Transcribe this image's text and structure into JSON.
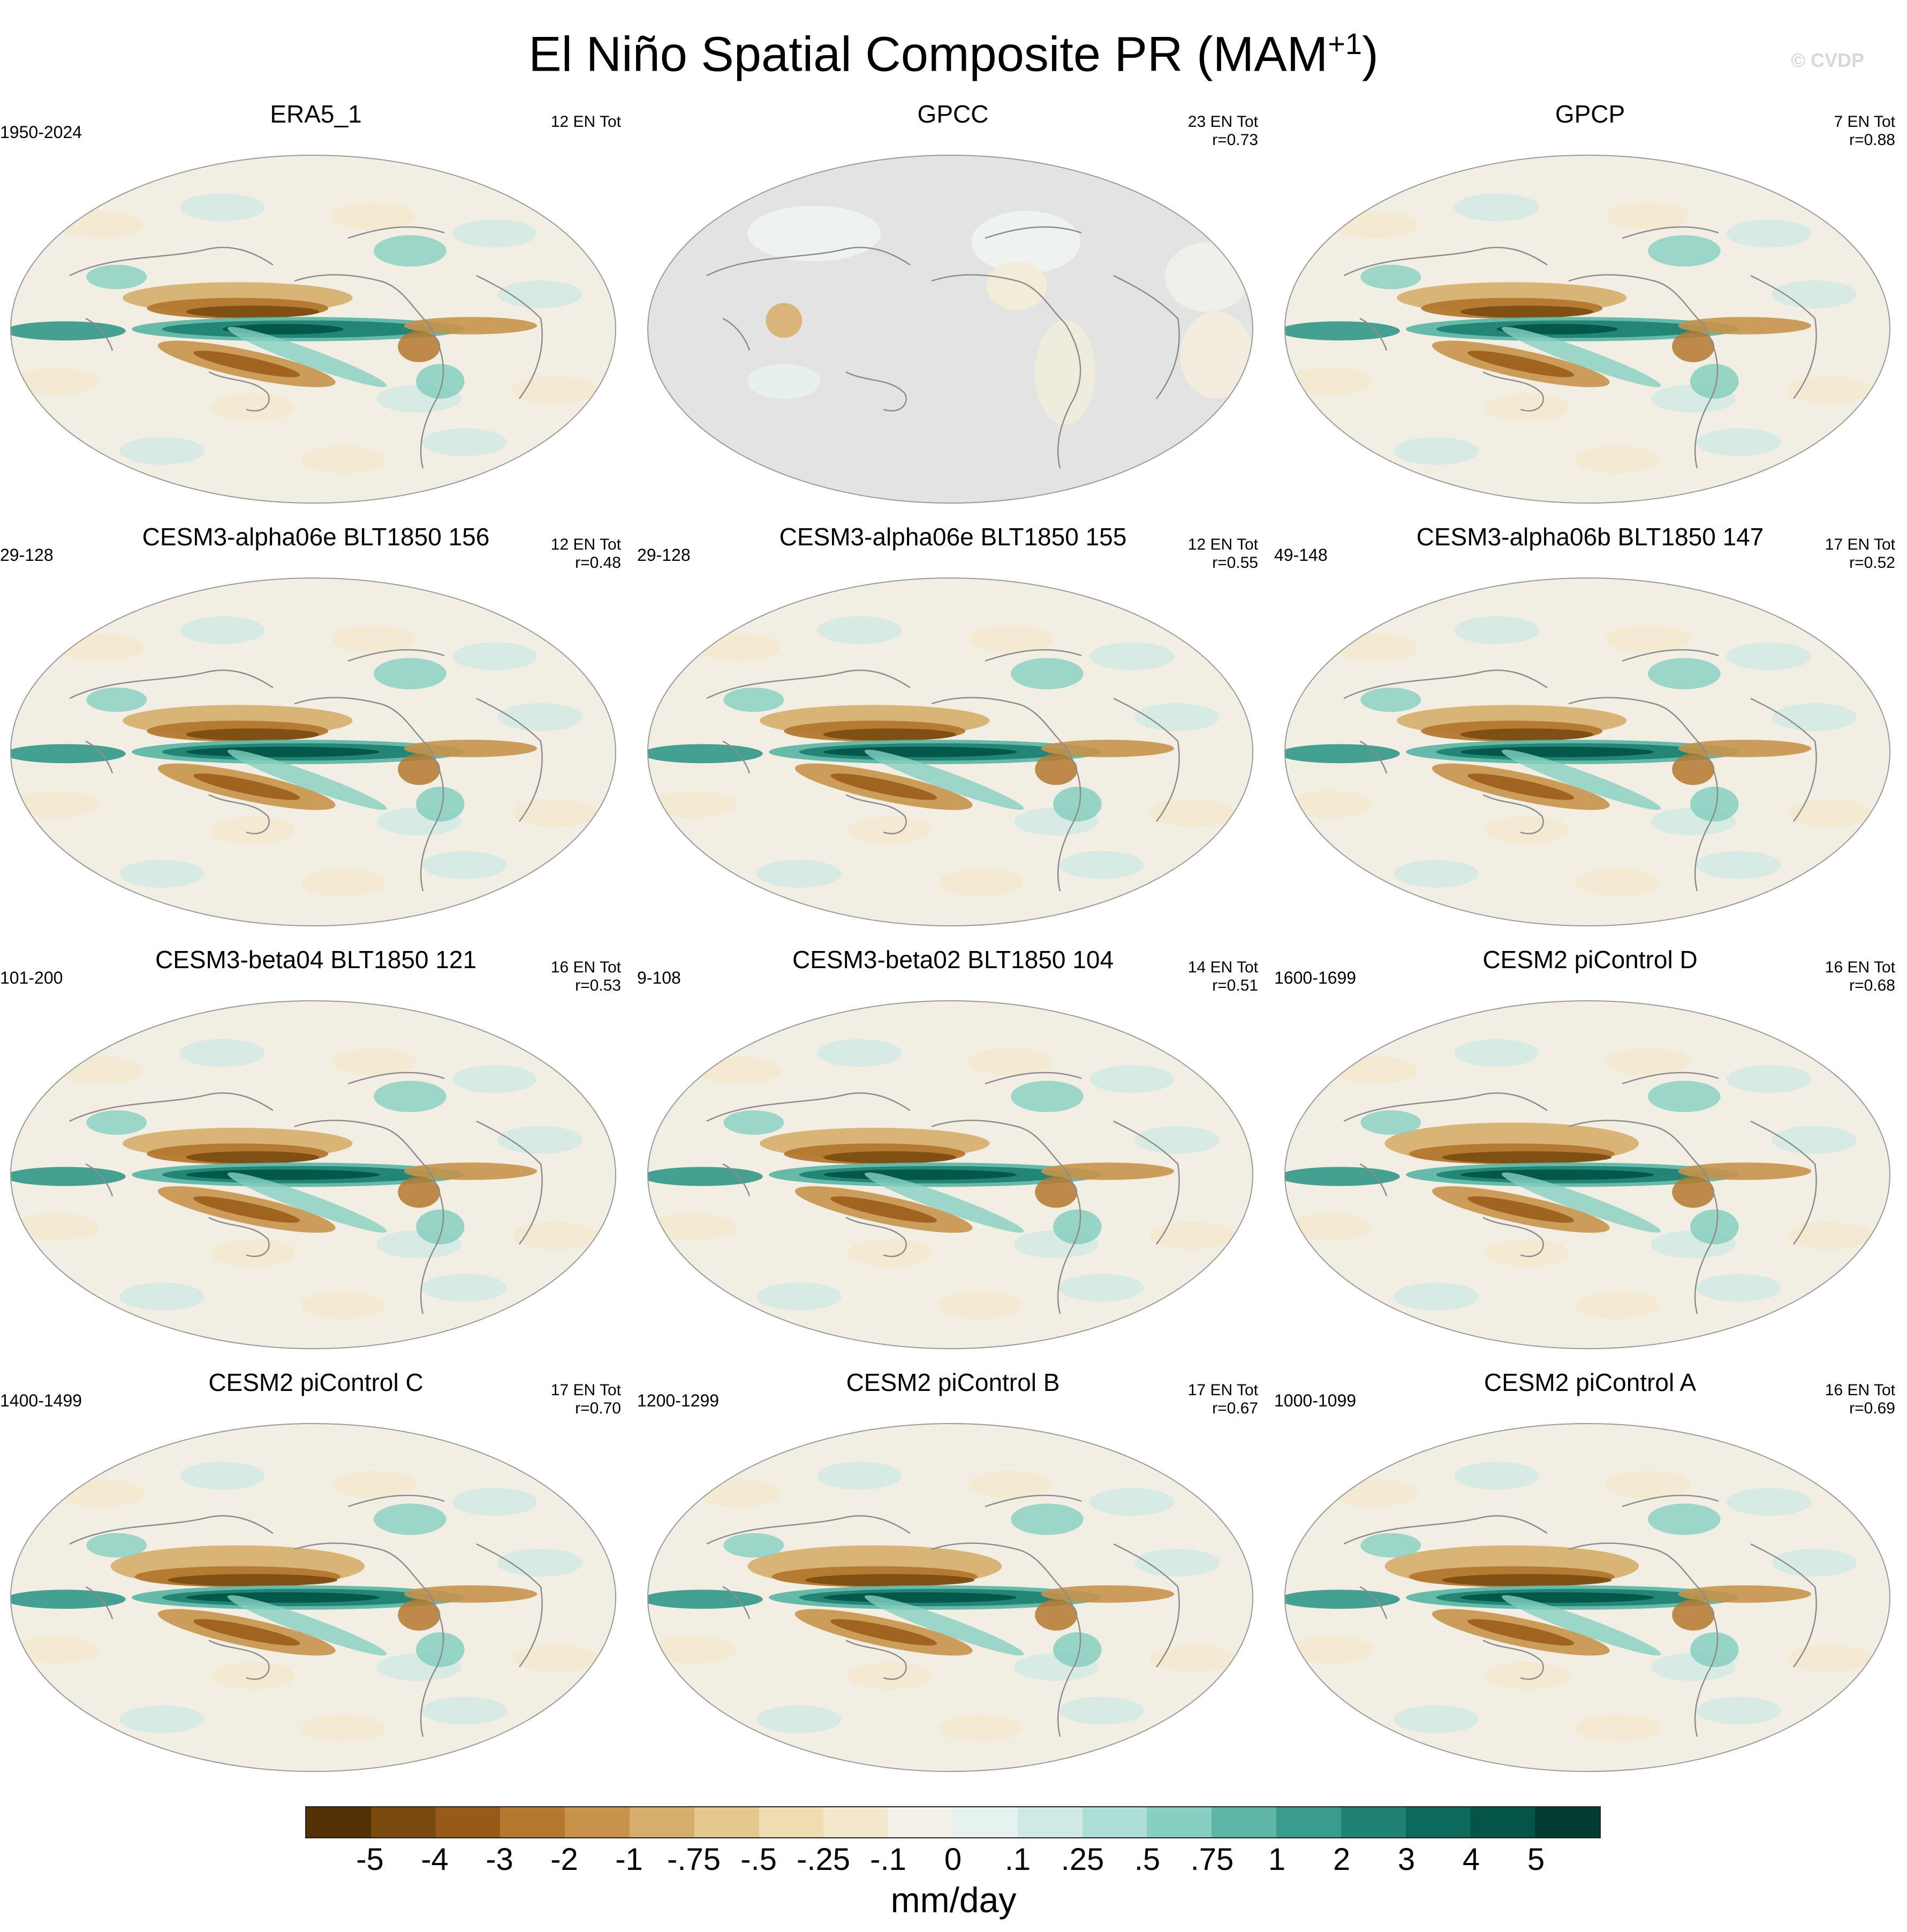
{
  "figure": {
    "title_main": "El Niño Spatial Composite PR (MAM",
    "title_sup": "+1",
    "title_end": ")",
    "watermark": "© CVDP"
  },
  "colors": {
    "land_gray": "#e3e3e3",
    "coast": "#8c8c8c",
    "scale": [
      "#543005",
      "#7a4a0f",
      "#985a16",
      "#b4782e",
      "#c8924a",
      "#d6ad6a",
      "#e5c88d",
      "#efdcb0",
      "#f3e8cc",
      "#f4f1ea",
      "#e6f2ef",
      "#cfe9e4",
      "#aedfd6",
      "#86cfc1",
      "#5db6a6",
      "#3a9c8c",
      "#1f8273",
      "#0c6a5c",
      "#035548",
      "#003c30"
    ]
  },
  "panels": [
    {
      "title": "ERA5_1",
      "years": "1950-2024",
      "count": "12 EN Tot",
      "corr": "",
      "pattern": "obs",
      "land_only": false
    },
    {
      "title": "GPCC",
      "years": "",
      "count": "23 EN Tot",
      "corr": "r=0.73",
      "pattern": "gpcc",
      "land_only": true
    },
    {
      "title": "GPCP",
      "years": "",
      "count": "7 EN Tot",
      "corr": "r=0.88",
      "pattern": "obs",
      "land_only": false
    },
    {
      "title": "CESM3-alpha06e BLT1850 156",
      "years": "29-128",
      "count": "12 EN Tot",
      "corr": "r=0.48",
      "pattern": "model",
      "land_only": false
    },
    {
      "title": "CESM3-alpha06e BLT1850 155",
      "years": "29-128",
      "count": "12 EN Tot",
      "corr": "r=0.55",
      "pattern": "model",
      "land_only": false
    },
    {
      "title": "CESM3-alpha06b BLT1850 147",
      "years": "49-148",
      "count": "17 EN Tot",
      "corr": "r=0.52",
      "pattern": "model",
      "land_only": false
    },
    {
      "title": "CESM3-beta04 BLT1850 121",
      "years": "101-200",
      "count": "16 EN Tot",
      "corr": "r=0.53",
      "pattern": "model",
      "land_only": false
    },
    {
      "title": "CESM3-beta02 BLT1850 104",
      "years": "9-108",
      "count": "14 EN Tot",
      "corr": "r=0.51",
      "pattern": "model",
      "land_only": false
    },
    {
      "title": "CESM2 piControl D",
      "years": "1600-1699",
      "count": "16 EN Tot",
      "corr": "r=0.68",
      "pattern": "strong",
      "land_only": false
    },
    {
      "title": "CESM2 piControl C",
      "years": "1400-1499",
      "count": "17 EN Tot",
      "corr": "r=0.70",
      "pattern": "strong",
      "land_only": false
    },
    {
      "title": "CESM2 piControl B",
      "years": "1200-1299",
      "count": "17 EN Tot",
      "corr": "r=0.67",
      "pattern": "strong",
      "land_only": false
    },
    {
      "title": "CESM2 piControl A",
      "years": "1000-1099",
      "count": "16 EN Tot",
      "corr": "r=0.69",
      "pattern": "strong",
      "land_only": false
    }
  ],
  "colorbar": {
    "ticks": [
      "-5",
      "-4",
      "-3",
      "-2",
      "-1",
      "-.75",
      "-.5",
      "-.25",
      "-.1",
      "0",
      ".1",
      ".25",
      ".5",
      ".75",
      "1",
      "2",
      "3",
      "4",
      "5"
    ],
    "units": "mm/day"
  }
}
